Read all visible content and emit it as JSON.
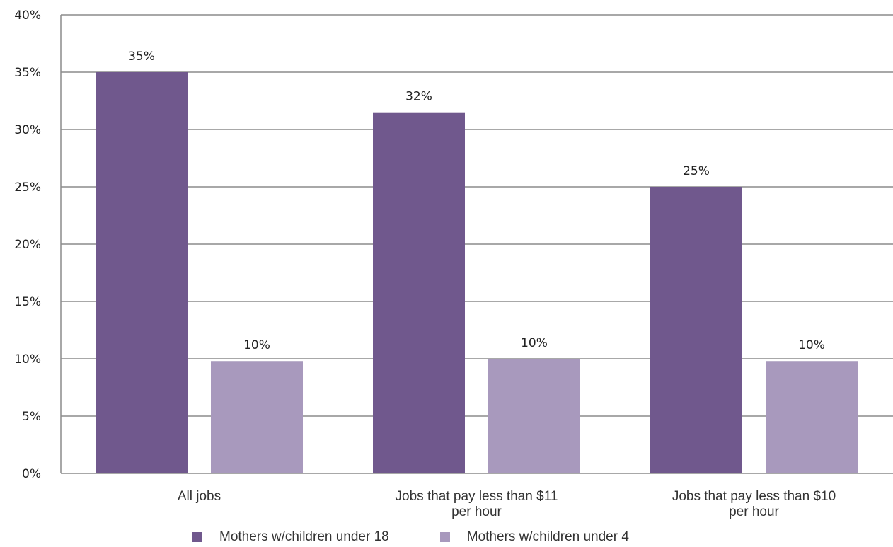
{
  "chart_data": {
    "type": "bar",
    "categories": [
      [
        "All jobs"
      ],
      [
        "Jobs that pay less than $11",
        "per hour"
      ],
      [
        "Jobs that pay less than $10",
        "per hour"
      ]
    ],
    "series": [
      {
        "name": "Mothers w/children under 18",
        "values": [
          35,
          31.5,
          25
        ],
        "labels": [
          "35%",
          "32%",
          "25%"
        ],
        "color": "#70588d"
      },
      {
        "name": "Mothers w/children under 4",
        "values": [
          9.8,
          10,
          9.8
        ],
        "labels": [
          "10%",
          "10%",
          "10%"
        ],
        "color": "#a899bd"
      }
    ],
    "ylim": [
      0,
      40
    ],
    "yticks": [
      0,
      5,
      10,
      15,
      20,
      25,
      30,
      35,
      40
    ],
    "ytick_labels": [
      "0%",
      "5%",
      "10%",
      "15%",
      "20%",
      "25%",
      "30%",
      "35%",
      "40%"
    ],
    "grid": true,
    "legend_position": "bottom"
  }
}
